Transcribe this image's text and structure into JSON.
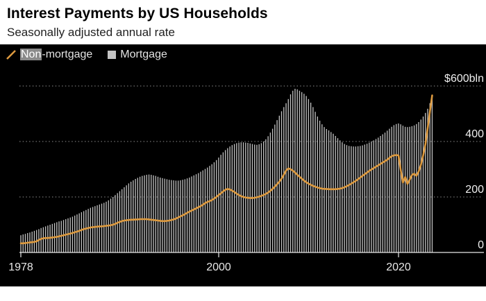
{
  "header": {
    "title": "Interest Payments by US Households",
    "subtitle": "Seasonally adjusted annual rate"
  },
  "legend": {
    "non_mortgage_highlight": "Non",
    "non_mortgage_rest": "-mortgage",
    "mortgage_label": "Mortgage"
  },
  "axes": {
    "y_ticks": [
      "$600bln",
      "400",
      "200",
      "0"
    ],
    "x_ticks": [
      "1978",
      "2000",
      "2020"
    ]
  },
  "colors": {
    "chart_bg": "#000000",
    "line": "#DD9A3F",
    "bars": "#C3C3C3",
    "grid": "#8F8F8F",
    "axis": "#E8E8E8",
    "label_text": "#EFEFEF",
    "legend_text": "#E3E3E3",
    "highlight_bg": "#8A8A8A",
    "highlight_text": "#FFFFFF",
    "page_bg": "#FFFFFF",
    "title_text": "#000000"
  },
  "chart_data": {
    "type": "bar",
    "title": "Interest Payments by US Households",
    "subtitle": "Seasonally adjusted annual rate",
    "unit": "US$ billions, seasonally adjusted annual rate",
    "x_start_year": 1978,
    "x_step_years": 0.25,
    "x_end_year": 2023.75,
    "ylim": [
      0,
      600
    ],
    "y_gridline_values": [
      600,
      400,
      200,
      0
    ],
    "x_tick_years": [
      1978,
      2000,
      2020
    ],
    "legend_position": "top-left",
    "grid": "dotted-horizontal",
    "series": [
      {
        "name": "Mortgage",
        "type": "bar",
        "color": "#C3C3C3",
        "values": [
          62,
          65,
          67,
          70,
          72,
          75,
          78,
          81,
          84,
          88,
          91,
          94,
          97,
          100,
          103,
          106,
          109,
          112,
          114,
          117,
          120,
          123,
          126,
          129,
          133,
          137,
          141,
          145,
          149,
          153,
          157,
          161,
          164,
          167,
          170,
          173,
          176,
          179,
          183,
          188,
          194,
          200,
          207,
          214,
          221,
          228,
          235,
          242,
          249,
          255,
          260,
          265,
          269,
          273,
          276,
          278,
          280,
          281,
          280,
          278,
          276,
          273,
          270,
          268,
          266,
          264,
          262,
          261,
          260,
          259,
          259,
          260,
          262,
          264,
          267,
          270,
          274,
          278,
          282,
          286,
          291,
          296,
          301,
          306,
          312,
          318,
          325,
          333,
          342,
          352,
          361,
          369,
          376,
          382,
          387,
          391,
          394,
          396,
          397,
          397,
          396,
          395,
          393,
          391,
          389,
          388,
          390,
          394,
          400,
          408,
          419,
          432,
          446,
          461,
          477,
          493,
          509,
          524,
          538,
          553,
          570,
          583,
          590,
          588,
          583,
          578,
          572,
          564,
          553,
          540,
          524,
          507,
          490,
          475,
          462,
          452,
          445,
          440,
          434,
          428,
          420,
          412,
          404,
          397,
          391,
          387,
          384,
          383,
          382,
          382,
          383,
          384,
          386,
          389,
          392,
          396,
          400,
          404,
          409,
          414,
          420,
          426,
          432,
          439,
          446,
          453,
          459,
          463,
          465,
          462,
          457,
          453,
          452,
          453,
          455,
          458,
          463,
          470,
          479,
          490,
          503,
          518,
          538,
          558
        ]
      },
      {
        "name": "Non-mortgage",
        "type": "line",
        "color": "#DD9A3F",
        "values": [
          33,
          33,
          34,
          35,
          36,
          37,
          38,
          40,
          45,
          49,
          51,
          52,
          52,
          53,
          54,
          55,
          56,
          58,
          60,
          62,
          64,
          66,
          68,
          70,
          73,
          75,
          78,
          81,
          84,
          86,
          88,
          90,
          91,
          92,
          93,
          94,
          94,
          95,
          96,
          97,
          98,
          100,
          103,
          107,
          110,
          113,
          115,
          116,
          117,
          118,
          118,
          119,
          119,
          120,
          120,
          120,
          120,
          119,
          118,
          117,
          116,
          115,
          114,
          113,
          113,
          114,
          115,
          117,
          119,
          122,
          126,
          130,
          134,
          138,
          143,
          147,
          151,
          155,
          159,
          163,
          167,
          172,
          178,
          182,
          185,
          189,
          194,
          200,
          207,
          213,
          220,
          226,
          229,
          227,
          223,
          218,
          212,
          207,
          203,
          200,
          198,
          197,
          196,
          196,
          197,
          199,
          201,
          204,
          207,
          211,
          216,
          222,
          229,
          237,
          246,
          255,
          266,
          280,
          295,
          303,
          300,
          295,
          288,
          280,
          273,
          266,
          259,
          253,
          248,
          244,
          240,
          237,
          234,
          232,
          230,
          229,
          229,
          228,
          228,
          228,
          228,
          229,
          230,
          232,
          235,
          239,
          243,
          248,
          253,
          258,
          264,
          270,
          276,
          282,
          288,
          294,
          299,
          304,
          309,
          314,
          319,
          324,
          329,
          334,
          341,
          347,
          350,
          351,
          350,
          298,
          252,
          272,
          247,
          262,
          279,
          284,
          276,
          292,
          316,
          350,
          390,
          448,
          508,
          566
        ]
      }
    ]
  }
}
